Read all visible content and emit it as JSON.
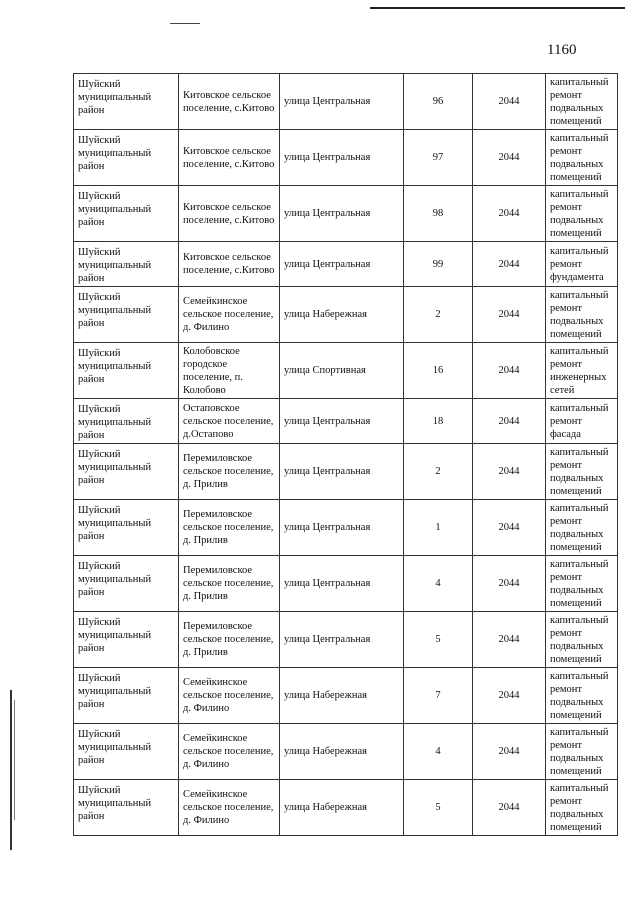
{
  "page_number": "1160",
  "rows": [
    {
      "district": "Шуйский муниципальный район",
      "settlement": "Китовское сельское поселение, с.Китово",
      "street": "улица Центральная",
      "house": "96",
      "year": "2044",
      "work": "капитальный ремонт подвальных помещений"
    },
    {
      "district": "Шуйский муниципальный район",
      "settlement": "Китовское сельское поселение, с.Китово",
      "street": "улица Центральная",
      "house": "97",
      "year": "2044",
      "work": "капитальный ремонт подвальных помещений"
    },
    {
      "district": "Шуйский муниципальный район",
      "settlement": "Китовское сельское поселение, с.Китово",
      "street": "улица Центральная",
      "house": "98",
      "year": "2044",
      "work": "капитальный ремонт подвальных помещений"
    },
    {
      "district": "Шуйский муниципальный район",
      "settlement": "Китовское сельское поселение, с.Китово",
      "street": "улица Центральная",
      "house": "99",
      "year": "2044",
      "work": "капитальный ремонт фундамента"
    },
    {
      "district": "Шуйский муниципальный район",
      "settlement": "Семейкинское сельское поселение, д. Филино",
      "street": "улица Набережная",
      "house": "2",
      "year": "2044",
      "work": "капитальный ремонт подвальных помещений"
    },
    {
      "district": "Шуйский муниципальный район",
      "settlement": "Колобовское городское поселение, п. Колобово",
      "street": "улица Спортивная",
      "house": "16",
      "year": "2044",
      "work": "капитальный ремонт инженерных сетей"
    },
    {
      "district": "Шуйский муниципальный район",
      "settlement": "Остаповское сельское поселение, д.Остапово",
      "street": "улица Центральная",
      "house": "18",
      "year": "2044",
      "work": "капитальный ремонт фасада"
    },
    {
      "district": "Шуйский муниципальный район",
      "settlement": "Перемиловское сельское поселение, д. Прилив",
      "street": "улица Центральная",
      "house": "2",
      "year": "2044",
      "work": "капитальный ремонт подвальных помещений"
    },
    {
      "district": "Шуйский муниципальный район",
      "settlement": "Перемиловское сельское поселение, д. Прилив",
      "street": "улица Центральная",
      "house": "1",
      "year": "2044",
      "work": "капитальный ремонт подвальных помещений"
    },
    {
      "district": "Шуйский муниципальный район",
      "settlement": "Перемиловское сельское поселение, д. Прилив",
      "street": "улица Центральная",
      "house": "4",
      "year": "2044",
      "work": "капитальный ремонт подвальных помещений"
    },
    {
      "district": "Шуйский муниципальный район",
      "settlement": "Перемиловское сельское поселение, д. Прилив",
      "street": "улица Центральная",
      "house": "5",
      "year": "2044",
      "work": "капитальный ремонт подвальных помещений"
    },
    {
      "district": "Шуйский муниципальный район",
      "settlement": "Семейкинское сельское поселение, д. Филино",
      "street": "улица Набережная",
      "house": "7",
      "year": "2044",
      "work": "капитальный ремонт подвальных помещений"
    },
    {
      "district": "Шуйский муниципальный район",
      "settlement": "Семейкинское сельское поселение, д. Филино",
      "street": "улица Набережная",
      "house": "4",
      "year": "2044",
      "work": "капитальный ремонт подвальных помещений"
    },
    {
      "district": "Шуйский муниципальный район",
      "settlement": "Семейкинское сельское поселение, д. Филино",
      "street": "улица Набережная",
      "house": "5",
      "year": "2044",
      "work": "капитальный ремонт подвальных помещений"
    }
  ]
}
